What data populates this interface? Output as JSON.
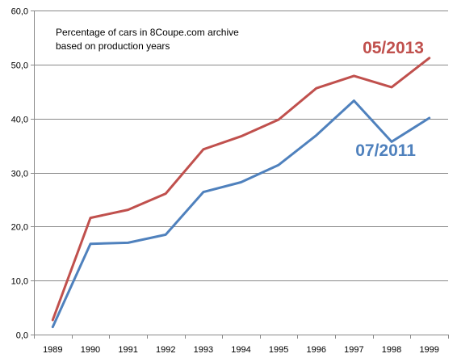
{
  "chart_data": {
    "type": "line",
    "title_line1": "Percentage of cars in 8Coupe.com archive",
    "title_line2": "based on production years",
    "xlabel": "",
    "ylabel": "",
    "categories": [
      "1989",
      "1990",
      "1991",
      "1992",
      "1993",
      "1994",
      "1995",
      "1996",
      "1997",
      "1998",
      "1999"
    ],
    "ylim": [
      0,
      60
    ],
    "yticks": [
      "0,0",
      "10,0",
      "20,0",
      "30,0",
      "40,0",
      "50,0",
      "60,0"
    ],
    "ytick_values": [
      0,
      10,
      20,
      30,
      40,
      50,
      60
    ],
    "grid": "horizontal",
    "series": [
      {
        "name": "05/2013",
        "color": "#c0504d",
        "values": [
          2.7,
          21.6,
          23.1,
          26.1,
          34.3,
          36.7,
          39.8,
          45.6,
          47.9,
          45.8,
          51.2
        ]
      },
      {
        "name": "07/2011",
        "color": "#4f81bd",
        "values": [
          1.4,
          16.8,
          17.0,
          18.5,
          26.4,
          28.2,
          31.4,
          36.9,
          43.3,
          35.7,
          40.1
        ]
      }
    ]
  }
}
